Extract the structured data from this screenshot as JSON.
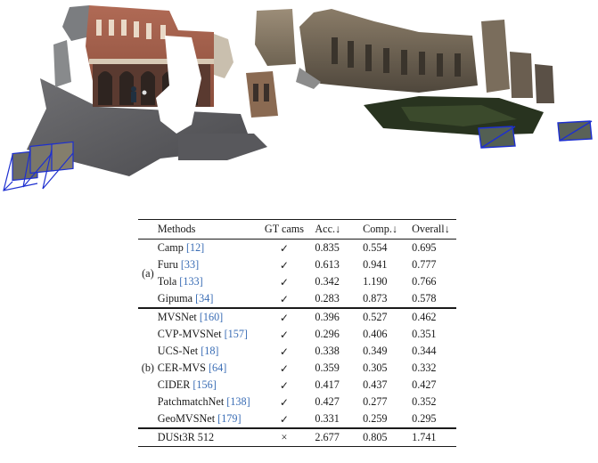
{
  "table": {
    "headers": {
      "methods": "Methods",
      "gt_cams": "GT cams",
      "acc": "Acc.↓",
      "comp": "Comp.↓",
      "overall": "Overall↓"
    },
    "groups": [
      {
        "label": "(a)",
        "rows": [
          {
            "name": "Camp",
            "ref": "[12]",
            "gt": "✓",
            "acc": "0.835",
            "comp": "0.554",
            "overall": "0.695",
            "bold": {}
          },
          {
            "name": "Furu",
            "ref": "[33]",
            "gt": "✓",
            "acc": "0.613",
            "comp": "0.941",
            "overall": "0.777",
            "bold": {}
          },
          {
            "name": "Tola",
            "ref": "[133]",
            "gt": "✓",
            "acc": "0.342",
            "comp": "1.190",
            "overall": "0.766",
            "bold": {}
          },
          {
            "name": "Gipuma",
            "ref": "[34]",
            "gt": "✓",
            "acc": "0.283",
            "comp": "0.873",
            "overall": "0.578",
            "bold": {
              "acc": true
            }
          }
        ]
      },
      {
        "label": "(b)",
        "rows": [
          {
            "name": "MVSNet",
            "ref": "[160]",
            "gt": "✓",
            "acc": "0.396",
            "comp": "0.527",
            "overall": "0.462",
            "bold": {}
          },
          {
            "name": "CVP-MVSNet",
            "ref": "[157]",
            "gt": "✓",
            "acc": "0.296",
            "comp": "0.406",
            "overall": "0.351",
            "bold": {}
          },
          {
            "name": "UCS-Net",
            "ref": "[18]",
            "gt": "✓",
            "acc": "0.338",
            "comp": "0.349",
            "overall": "0.344",
            "bold": {}
          },
          {
            "name": "CER-MVS",
            "ref": "[64]",
            "gt": "✓",
            "acc": "0.359",
            "comp": "0.305",
            "overall": "0.332",
            "bold": {}
          },
          {
            "name": "CIDER",
            "ref": "[156]",
            "gt": "✓",
            "acc": "0.417",
            "comp": "0.437",
            "overall": "0.427",
            "bold": {}
          },
          {
            "name": "PatchmatchNet",
            "ref": "[138]",
            "gt": "✓",
            "acc": "0.427",
            "comp": "0.277",
            "overall": "0.352",
            "bold": {}
          },
          {
            "name": "GeoMVSNet",
            "ref": "[179]",
            "gt": "✓",
            "acc": "0.331",
            "comp": "0.259",
            "overall": "0.295",
            "bold": {
              "comp": true,
              "overall": true
            }
          }
        ]
      }
    ],
    "final_row": {
      "name": "DUSt3R 512",
      "gt": "×",
      "acc": "2.677",
      "comp": "0.805",
      "overall": "1.741"
    }
  }
}
